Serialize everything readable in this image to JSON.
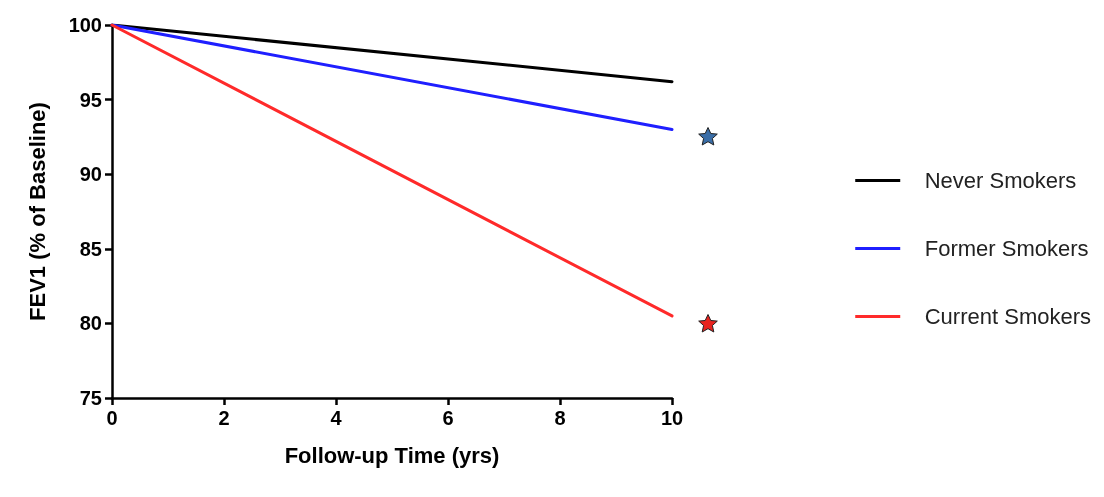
{
  "chart_data": {
    "type": "line",
    "xlabel": "Follow-up Time (yrs)",
    "ylabel": "FEV1 (% of Baseline)",
    "x": [
      0,
      10
    ],
    "series": [
      {
        "name": "Never Smokers",
        "color": "#000000",
        "values": [
          100,
          96.2
        ]
      },
      {
        "name": "Former Smokers",
        "color": "#1f1fff",
        "values": [
          100,
          93.0
        ]
      },
      {
        "name": "Current Smokers",
        "color": "#ff2a2a",
        "values": [
          100,
          80.5
        ]
      }
    ],
    "xlim": [
      0,
      10
    ],
    "xticks": [
      0,
      2,
      4,
      6,
      8,
      10
    ],
    "ylim": [
      75,
      100
    ],
    "yticks": [
      75,
      80,
      85,
      90,
      95,
      100
    ],
    "grid": false,
    "legend": "right",
    "marker": "none",
    "line_style": "solid"
  }
}
